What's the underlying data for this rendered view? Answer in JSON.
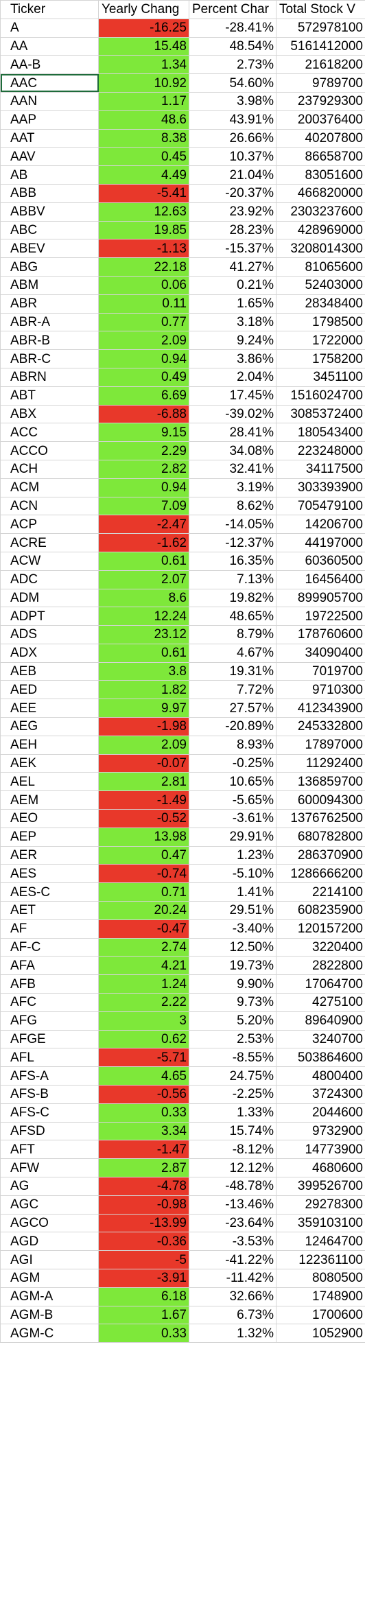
{
  "headers": [
    "Ticker",
    "Yearly Chang",
    "Percent Char",
    "Total Stock V"
  ],
  "colors": {
    "positive": "#7ee83a",
    "negative": "#e8382a",
    "selection": "#1e6b3a",
    "grid": "#d4d4d4"
  },
  "selected_cell": "AAC",
  "rows": [
    [
      "A",
      "-16.25",
      "-28.41%",
      "572978100"
    ],
    [
      "AA",
      "15.48",
      "48.54%",
      "5161412000"
    ],
    [
      "AA-B",
      "1.34",
      "2.73%",
      "21618200"
    ],
    [
      "AAC",
      "10.92",
      "54.60%",
      "9789700"
    ],
    [
      "AAN",
      "1.17",
      "3.98%",
      "237929300"
    ],
    [
      "AAP",
      "48.6",
      "43.91%",
      "200376400"
    ],
    [
      "AAT",
      "8.38",
      "26.66%",
      "40207800"
    ],
    [
      "AAV",
      "0.45",
      "10.37%",
      "86658700"
    ],
    [
      "AB",
      "4.49",
      "21.04%",
      "83051600"
    ],
    [
      "ABB",
      "-5.41",
      "-20.37%",
      "466820000"
    ],
    [
      "ABBV",
      "12.63",
      "23.92%",
      "2303237600"
    ],
    [
      "ABC",
      "19.85",
      "28.23%",
      "428969000"
    ],
    [
      "ABEV",
      "-1.13",
      "-15.37%",
      "3208014300"
    ],
    [
      "ABG",
      "22.18",
      "41.27%",
      "81065600"
    ],
    [
      "ABM",
      "0.06",
      "0.21%",
      "52403000"
    ],
    [
      "ABR",
      "0.11",
      "1.65%",
      "28348400"
    ],
    [
      "ABR-A",
      "0.77",
      "3.18%",
      "1798500"
    ],
    [
      "ABR-B",
      "2.09",
      "9.24%",
      "1722000"
    ],
    [
      "ABR-C",
      "0.94",
      "3.86%",
      "1758200"
    ],
    [
      "ABRN",
      "0.49",
      "2.04%",
      "3451100"
    ],
    [
      "ABT",
      "6.69",
      "17.45%",
      "1516024700"
    ],
    [
      "ABX",
      "-6.88",
      "-39.02%",
      "3085372400"
    ],
    [
      "ACC",
      "9.15",
      "28.41%",
      "180543400"
    ],
    [
      "ACCO",
      "2.29",
      "34.08%",
      "223248000"
    ],
    [
      "ACH",
      "2.82",
      "32.41%",
      "34117500"
    ],
    [
      "ACM",
      "0.94",
      "3.19%",
      "303393900"
    ],
    [
      "ACN",
      "7.09",
      "8.62%",
      "705479100"
    ],
    [
      "ACP",
      "-2.47",
      "-14.05%",
      "14206700"
    ],
    [
      "ACRE",
      "-1.62",
      "-12.37%",
      "44197000"
    ],
    [
      "ACW",
      "0.61",
      "16.35%",
      "60360500"
    ],
    [
      "ADC",
      "2.07",
      "7.13%",
      "16456400"
    ],
    [
      "ADM",
      "8.6",
      "19.82%",
      "899905700"
    ],
    [
      "ADPT",
      "12.24",
      "48.65%",
      "19722500"
    ],
    [
      "ADS",
      "23.12",
      "8.79%",
      "178760600"
    ],
    [
      "ADX",
      "0.61",
      "4.67%",
      "34090400"
    ],
    [
      "AEB",
      "3.8",
      "19.31%",
      "7019700"
    ],
    [
      "AED",
      "1.82",
      "7.72%",
      "9710300"
    ],
    [
      "AEE",
      "9.97",
      "27.57%",
      "412343900"
    ],
    [
      "AEG",
      "-1.98",
      "-20.89%",
      "245332800"
    ],
    [
      "AEH",
      "2.09",
      "8.93%",
      "17897000"
    ],
    [
      "AEK",
      "-0.07",
      "-0.25%",
      "11292400"
    ],
    [
      "AEL",
      "2.81",
      "10.65%",
      "136859700"
    ],
    [
      "AEM",
      "-1.49",
      "-5.65%",
      "600094300"
    ],
    [
      "AEO",
      "-0.52",
      "-3.61%",
      "1376762500"
    ],
    [
      "AEP",
      "13.98",
      "29.91%",
      "680782800"
    ],
    [
      "AER",
      "0.47",
      "1.23%",
      "286370900"
    ],
    [
      "AES",
      "-0.74",
      "-5.10%",
      "1286666200"
    ],
    [
      "AES-C",
      "0.71",
      "1.41%",
      "2214100"
    ],
    [
      "AET",
      "20.24",
      "29.51%",
      "608235900"
    ],
    [
      "AF",
      "-0.47",
      "-3.40%",
      "120157200"
    ],
    [
      "AF-C",
      "2.74",
      "12.50%",
      "3220400"
    ],
    [
      "AFA",
      "4.21",
      "19.73%",
      "2822800"
    ],
    [
      "AFB",
      "1.24",
      "9.90%",
      "17064700"
    ],
    [
      "AFC",
      "2.22",
      "9.73%",
      "4275100"
    ],
    [
      "AFG",
      "3",
      "5.20%",
      "89640900"
    ],
    [
      "AFGE",
      "0.62",
      "2.53%",
      "3240700"
    ],
    [
      "AFL",
      "-5.71",
      "-8.55%",
      "503864600"
    ],
    [
      "AFS-A",
      "4.65",
      "24.75%",
      "4800400"
    ],
    [
      "AFS-B",
      "-0.56",
      "-2.25%",
      "3724300"
    ],
    [
      "AFS-C",
      "0.33",
      "1.33%",
      "2044600"
    ],
    [
      "AFSD",
      "3.34",
      "15.74%",
      "9732900"
    ],
    [
      "AFT",
      "-1.47",
      "-8.12%",
      "14773900"
    ],
    [
      "AFW",
      "2.87",
      "12.12%",
      "4680600"
    ],
    [
      "AG",
      "-4.78",
      "-48.78%",
      "399526700"
    ],
    [
      "AGC",
      "-0.98",
      "-13.46%",
      "29278300"
    ],
    [
      "AGCO",
      "-13.99",
      "-23.64%",
      "359103100"
    ],
    [
      "AGD",
      "-0.36",
      "-3.53%",
      "12464700"
    ],
    [
      "AGI",
      "-5",
      "-41.22%",
      "122361100"
    ],
    [
      "AGM",
      "-3.91",
      "-11.42%",
      "8080500"
    ],
    [
      "AGM-A",
      "6.18",
      "32.66%",
      "1748900"
    ],
    [
      "AGM-B",
      "1.67",
      "6.73%",
      "1700600"
    ],
    [
      "AGM-C",
      "0.33",
      "1.32%",
      "1052900"
    ]
  ]
}
